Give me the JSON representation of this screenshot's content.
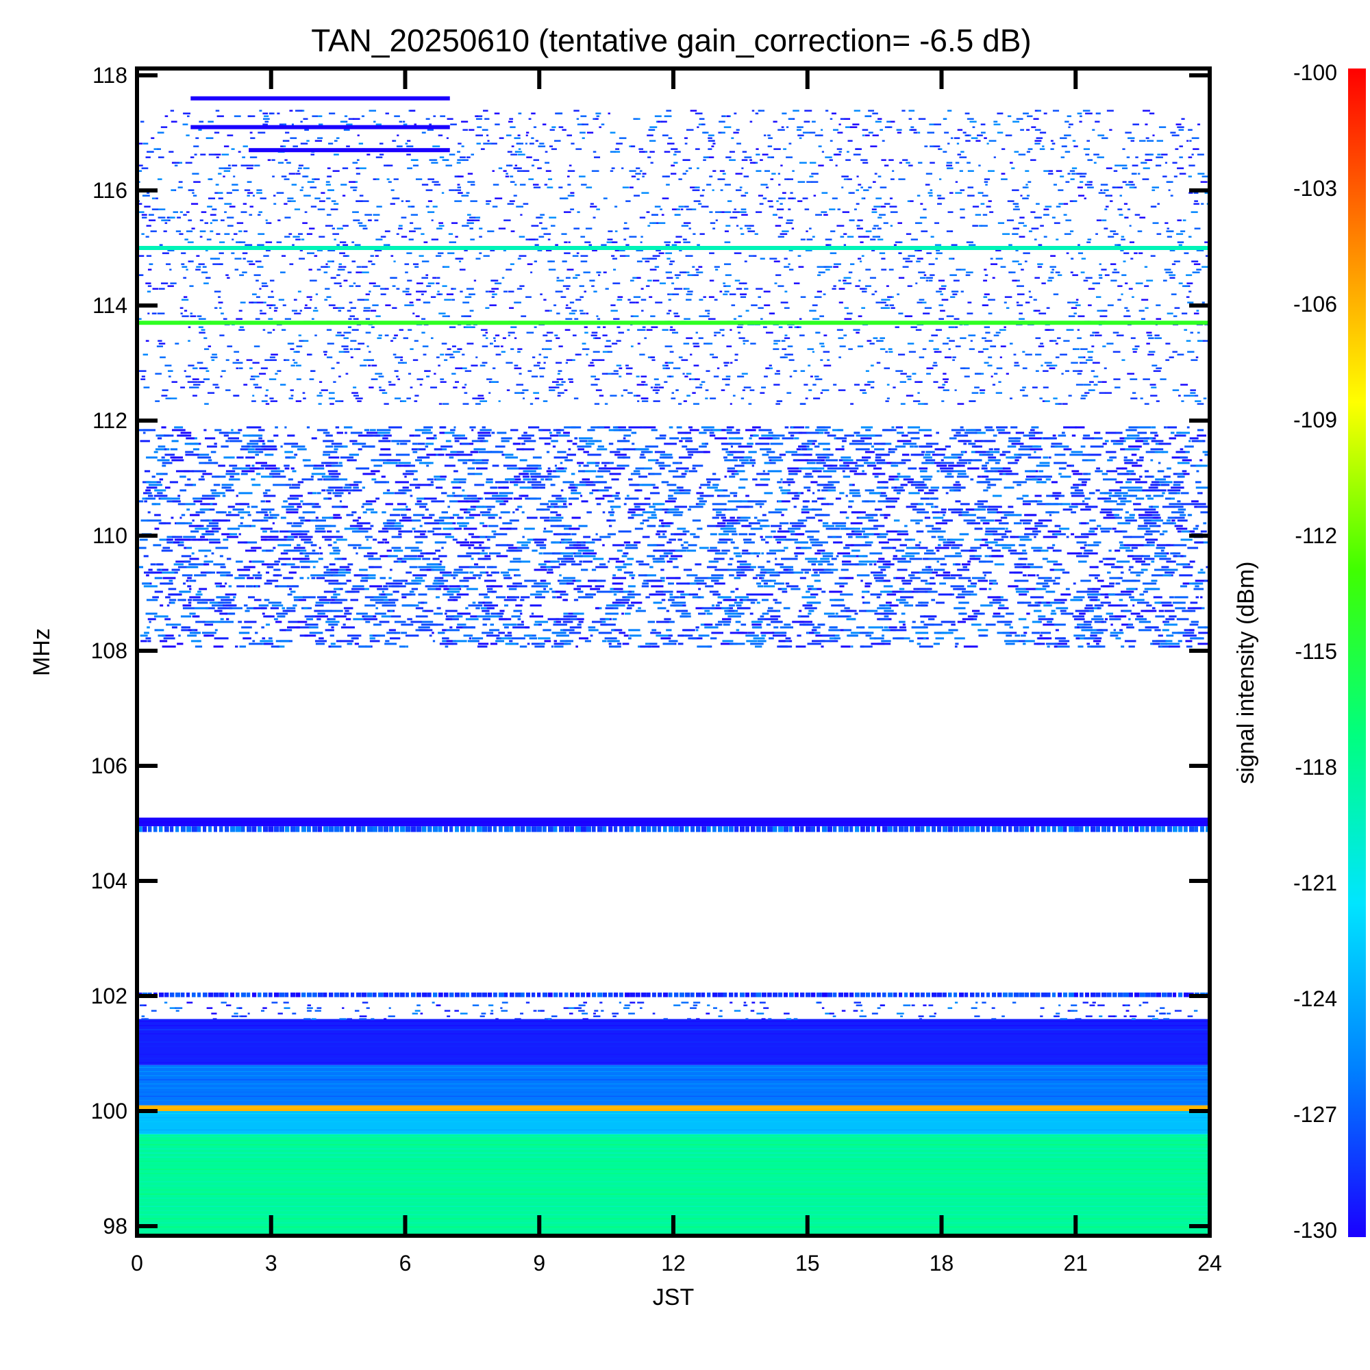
{
  "chart_data": {
    "type": "heatmap",
    "title": "TAN_20250610 (tentative gain_correction= -6.5 dB)",
    "xlabel": "JST",
    "ylabel": "MHz",
    "colorbar_label": "signal intensity (dBm)",
    "xlim": [
      0,
      24
    ],
    "ylim": [
      97.8,
      118.1
    ],
    "x_ticks": [
      "0",
      "3",
      "6",
      "9",
      "12",
      "15",
      "18",
      "21",
      "24"
    ],
    "y_ticks": [
      "118",
      "116",
      "114",
      "112",
      "110",
      "108",
      "106",
      "104",
      "102",
      "100",
      "98"
    ],
    "colorbar_range": [
      -130,
      -100
    ],
    "colorbar_ticks": [
      "-100",
      "-103",
      "-106",
      "-109",
      "-112",
      "-115",
      "-118",
      "-121",
      "-124",
      "-127",
      "-130"
    ],
    "colormap": [
      "#1a00ff",
      "#0080ff",
      "#00e5ff",
      "#00ff80",
      "#40ff00",
      "#ffff00",
      "#ff8000",
      "#ff0000"
    ],
    "bands": [
      {
        "y_from": 97.8,
        "y_to": 99.6,
        "level_dBm": -118,
        "pattern": "solid"
      },
      {
        "y_from": 99.6,
        "y_to": 100.0,
        "level_dBm": -123,
        "pattern": "solid"
      },
      {
        "y_from": 100.0,
        "y_to": 100.1,
        "level_dBm": -106,
        "pattern": "solid"
      },
      {
        "y_from": 100.1,
        "y_to": 100.8,
        "level_dBm": -126,
        "pattern": "solid"
      },
      {
        "y_from": 100.8,
        "y_to": 101.6,
        "level_dBm": -129,
        "pattern": "solid"
      },
      {
        "y_from": 101.6,
        "y_to": 101.9,
        "level_dBm": -130,
        "pattern": "speckle"
      },
      {
        "y_from": 101.98,
        "y_to": 102.06,
        "level_dBm": -130,
        "pattern": "dashed"
      },
      {
        "y_from": 104.85,
        "y_to": 104.95,
        "level_dBm": -129,
        "pattern": "dashed"
      },
      {
        "y_from": 104.95,
        "y_to": 105.1,
        "level_dBm": -130,
        "pattern": "solid"
      },
      {
        "y_from": 108.05,
        "y_to": 111.9,
        "level_dBm": -130,
        "pattern": "dense-speckle"
      },
      {
        "y_from": 112.3,
        "y_to": 117.4,
        "level_dBm": -130,
        "pattern": "speckle"
      }
    ],
    "lines": [
      {
        "freq_MHz": 115.0,
        "level_dBm": -119
      },
      {
        "freq_MHz": 113.7,
        "level_dBm": -114
      }
    ],
    "segments": [
      {
        "freq_MHz": 117.6,
        "x_from": 1.2,
        "x_to": 7.0,
        "level_dBm": -130
      },
      {
        "freq_MHz": 117.1,
        "x_from": 1.2,
        "x_to": 7.0,
        "level_dBm": -130
      },
      {
        "freq_MHz": 116.7,
        "x_from": 2.5,
        "x_to": 7.0,
        "level_dBm": -130
      }
    ]
  }
}
